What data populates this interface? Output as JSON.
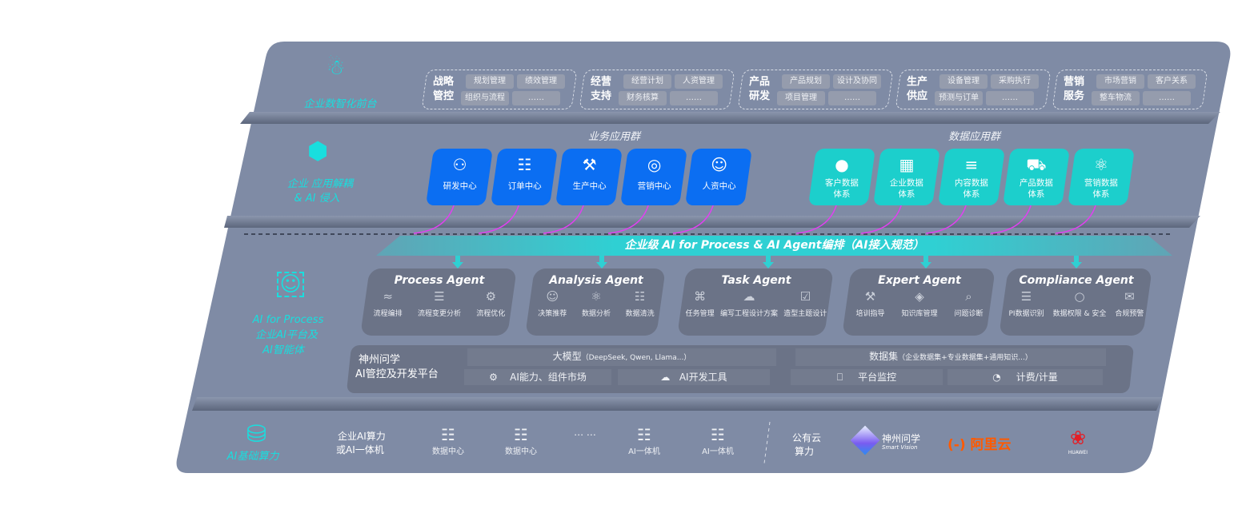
{
  "colors": {
    "panel": "#7f8ba5",
    "band": "#5f6a80",
    "blue_tile": "#0b6ef2",
    "teal_tile": "#1ccfcc",
    "accent_cyan": "#19dede",
    "arrow_magenta": "#e040f0",
    "agent_box": "#6b7387"
  },
  "tiers": {
    "front": {
      "label": "企业数智化前台",
      "icon": "brain-icon"
    },
    "apps": {
      "label_line1": "企业 应用解耦",
      "label_line2": "& AI 侵入",
      "icon": "molecule-icon"
    },
    "ai": {
      "label_line1": "AI for Process",
      "label_line2": "企业AI平台及",
      "label_line3": "AI智能体",
      "icon": "face-scan-icon"
    },
    "infra": {
      "label": "AI基础算力",
      "icon": "database-icon"
    }
  },
  "front_groups": [
    {
      "title1": "战略",
      "title2": "管控",
      "chips": [
        "规划管理",
        "绩效管理",
        "组织与流程",
        "……"
      ]
    },
    {
      "title1": "经营",
      "title2": "支持",
      "chips": [
        "经营计划",
        "人资管理",
        "财务核算",
        "……"
      ]
    },
    {
      "title1": "产品",
      "title2": "研发",
      "chips": [
        "产品规划",
        "设计及协同",
        "项目管理",
        "……"
      ]
    },
    {
      "title1": "生产",
      "title2": "供应",
      "chips": [
        "设备管理",
        "采购执行",
        "预测与订单",
        "……"
      ]
    },
    {
      "title1": "营销",
      "title2": "服务",
      "chips": [
        "市场营销",
        "客户关系",
        "整车物流",
        "……"
      ]
    }
  ],
  "business_apps": {
    "title": "业务应用群",
    "tiles": [
      {
        "label": "研发中心",
        "icon": "team-icon"
      },
      {
        "label": "订单中心",
        "icon": "clipboard-icon"
      },
      {
        "label": "生产中心",
        "icon": "factory-icon"
      },
      {
        "label": "营销中心",
        "icon": "target-icon"
      },
      {
        "label": "人资中心",
        "icon": "person-icon"
      }
    ]
  },
  "data_apps": {
    "title": "数据应用群",
    "tiles": [
      {
        "line1": "客户数据",
        "line2": "体系",
        "icon": "user-icon"
      },
      {
        "line1": "企业数据",
        "line2": "体系",
        "icon": "building-icon"
      },
      {
        "line1": "内容数据",
        "line2": "体系",
        "icon": "books-icon"
      },
      {
        "line1": "产品数据",
        "line2": "体系",
        "icon": "car-icon"
      },
      {
        "line1": "营销数据",
        "line2": "体系",
        "icon": "atom-icon"
      }
    ]
  },
  "banner": "企业级 AI for Process & AI Agent编排（AI接入规范）",
  "agents": [
    {
      "name": "Process Agent",
      "items": [
        "流程编排",
        "流程变更分析",
        "流程优化"
      ]
    },
    {
      "name": "Analysis Agent",
      "items": [
        "决策推荐",
        "数据分析",
        "数据清洗"
      ]
    },
    {
      "name": "Task Agent",
      "items": [
        "任务管理",
        "编写工程设计方案",
        "造型主题设计"
      ]
    },
    {
      "name": "Expert Agent",
      "items": [
        "培训指导",
        "知识库管理",
        "问题诊断"
      ]
    },
    {
      "name": "Compliance Agent",
      "items": [
        "PI数据识别",
        "数据权限 & 安全",
        "合规预警"
      ]
    }
  ],
  "platform": {
    "title1": "神州问学",
    "title2": "AI管控及开发平台",
    "model": "大模型",
    "model_note": "（DeepSeek, Qwen, Llama...）",
    "dataset": "数据集",
    "dataset_note": "（企业数据集+专业数据集+通用知识...）",
    "tools": [
      "AI能力、组件市场",
      "AI开发工具",
      "平台监控",
      "计费/计量"
    ]
  },
  "infra": {
    "private_line1": "企业AI算力",
    "private_line2": "或AI一体机",
    "nodes": [
      "数据中心",
      "数据中心",
      "AI一体机",
      "AI一体机"
    ],
    "ellipsis": "… …",
    "public_line1": "公有云",
    "public_line2": "算力",
    "vendors": [
      {
        "name": "神州问学",
        "sub": "Smart Vision"
      },
      {
        "name": "阿里云",
        "logo": "(-)"
      },
      {
        "name": "HUAWEI"
      }
    ]
  }
}
